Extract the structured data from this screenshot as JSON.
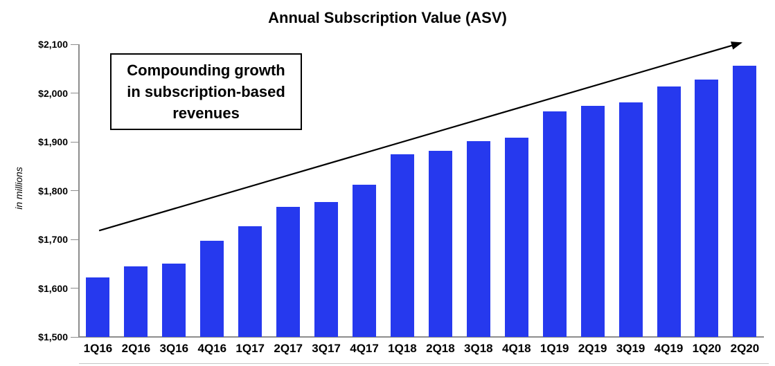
{
  "title": "Annual Subscription Value (ASV)",
  "y_axis": {
    "label": "in millions",
    "tick_labels": [
      "$2,100",
      "$2,000",
      "$1,900",
      "$1,800",
      "$1,700",
      "$1,600",
      "$1,500"
    ]
  },
  "annotation": {
    "line1": "Compounding growth",
    "line2": "in subscription-based",
    "line3": "revenues"
  },
  "colors": {
    "bar": "#2639EE",
    "axis": "#8C8C8C",
    "frame_line": "#C5C5C5",
    "arrow": "#000000",
    "text": "#000000"
  },
  "chart_data": {
    "type": "bar",
    "title": "Annual Subscription Value (ASV)",
    "ylabel": "in millions",
    "ylim": [
      1500,
      2100
    ],
    "y_tick_step": 100,
    "grid": false,
    "legend": "none",
    "categories": [
      "1Q16",
      "2Q16",
      "3Q16",
      "4Q16",
      "1Q17",
      "2Q17",
      "3Q17",
      "4Q17",
      "1Q18",
      "2Q18",
      "3Q18",
      "4Q18",
      "1Q19",
      "2Q19",
      "3Q19",
      "4Q19",
      "1Q20",
      "2Q20"
    ],
    "values": [
      1622,
      1645,
      1650,
      1697,
      1727,
      1766,
      1776,
      1812,
      1874,
      1882,
      1901,
      1909,
      1962,
      1974,
      1981,
      2014,
      2028,
      2056
    ],
    "annotation_text": "Compounding growth in subscription-based revenues",
    "trend_arrow": {
      "direction": "up-right",
      "start": {
        "category_index": 0.03,
        "value": 1718
      },
      "end": {
        "category_index": 16.9,
        "value": 2103
      }
    }
  }
}
